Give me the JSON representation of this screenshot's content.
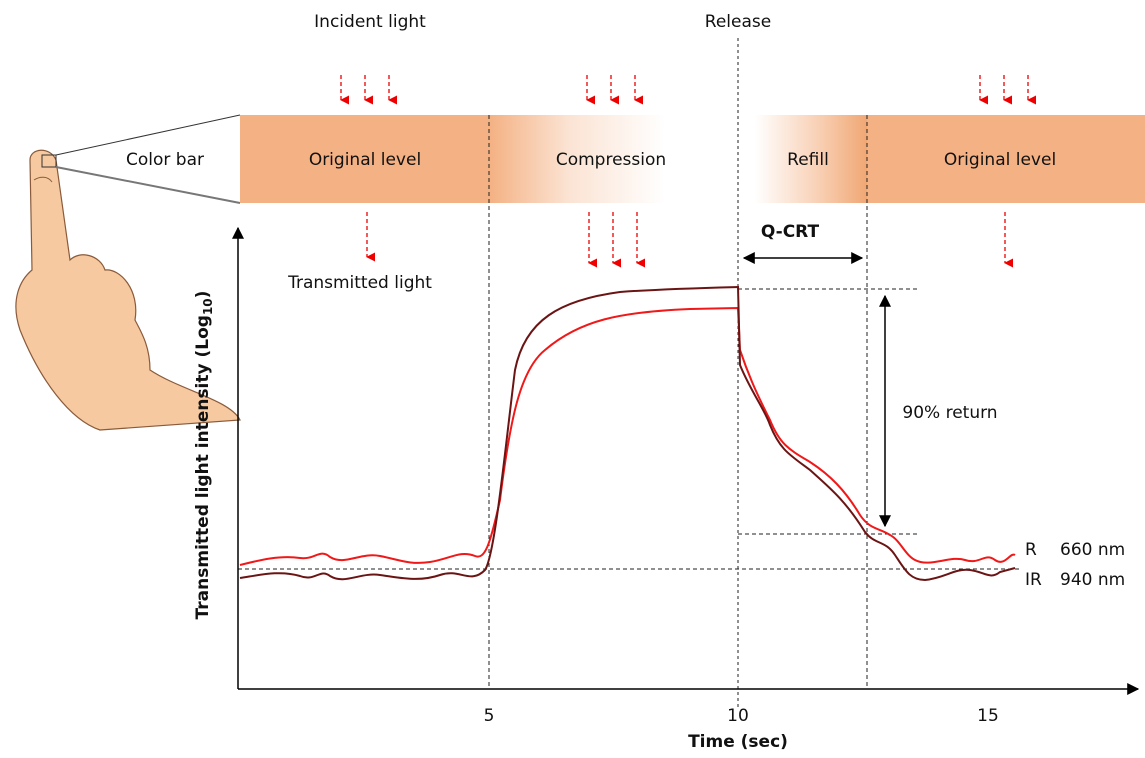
{
  "labels": {
    "incident_light": "Incident light",
    "release": "Release",
    "color_bar": "Color bar",
    "transmitted_light": "Transmitted light",
    "q_crt": "Q-CRT",
    "return": "90% return"
  },
  "color_bar": [
    "Original level",
    "Compression",
    "Refill",
    "Original level"
  ],
  "legend": [
    {
      "name": "R",
      "wavelength": "660 nm"
    },
    {
      "name": "IR",
      "wavelength": "940 nm"
    }
  ],
  "x_axis": {
    "label": "Time (sec)",
    "ticks": [
      5,
      10,
      15
    ]
  },
  "y_axis": {
    "label": "Transmitted light intensity (Log",
    "subscript": "10",
    "suffix": ")"
  }
}
